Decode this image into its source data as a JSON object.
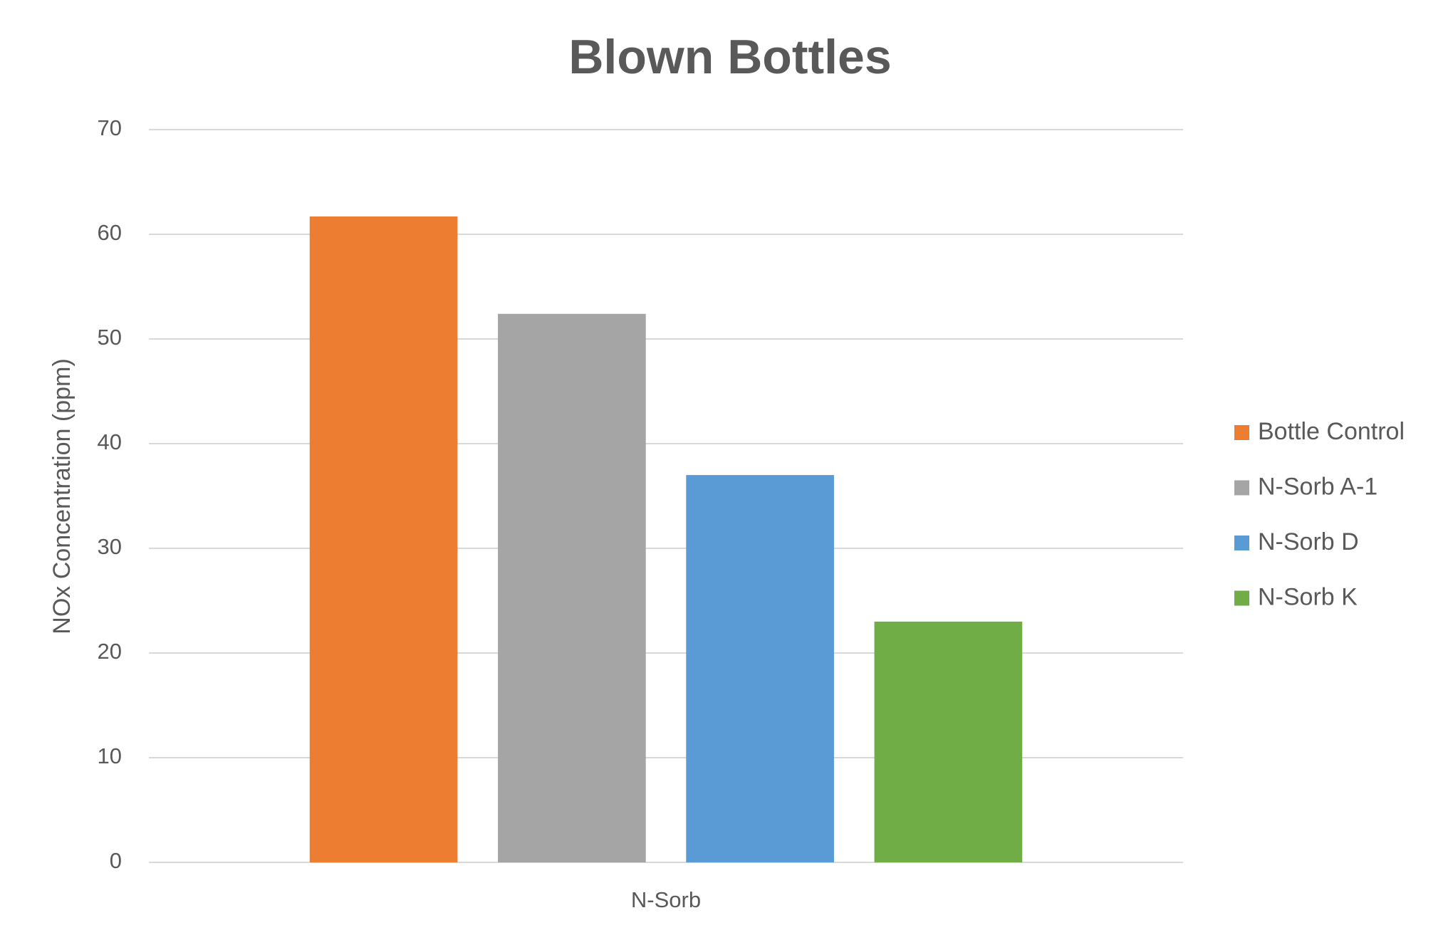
{
  "chart_data": {
    "type": "bar",
    "title": "Blown Bottles",
    "y_label": "NOx Concentration (ppm)",
    "categories": [
      "N-Sorb"
    ],
    "series": [
      {
        "name": "Bottle Control",
        "color": "#ed7d31",
        "values": [
          61.7
        ]
      },
      {
        "name": "N-Sorb A-1",
        "color": "#a5a5a5",
        "values": [
          52.4
        ]
      },
      {
        "name": "N-Sorb D",
        "color": "#5b9bd5",
        "values": [
          37.0
        ]
      },
      {
        "name": "N-Sorb K",
        "color": "#70ad47",
        "values": [
          23.0
        ]
      }
    ],
    "ylim": [
      0,
      70
    ],
    "yticks": [
      0,
      10,
      20,
      30,
      40,
      50,
      60,
      70
    ],
    "grid": true,
    "legend": "right"
  }
}
